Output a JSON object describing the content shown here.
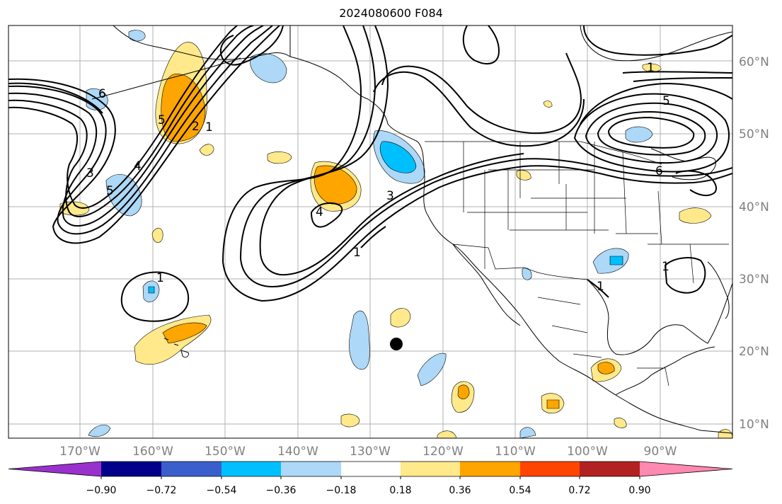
{
  "title": "2024080600 F084",
  "map": {
    "lat_labels": [
      "60°N",
      "50°N",
      "40°N",
      "30°N",
      "20°N",
      "10°N"
    ],
    "lon_labels": [
      "170°W",
      "160°W",
      "150°W",
      "140°W",
      "130°W",
      "120°W",
      "110°W",
      "100°W",
      "90°W"
    ],
    "contour_labels": [
      "6",
      "5",
      "2",
      "1",
      "3",
      "4",
      "5",
      "4",
      "3",
      "1",
      "1",
      "5",
      "6",
      "1",
      "1",
      "1"
    ],
    "marker": "black-dot"
  },
  "colorbar": {
    "ticks": [
      "−0.90",
      "−0.72",
      "−0.54",
      "−0.36",
      "−0.18",
      "0.18",
      "0.36",
      "0.54",
      "0.72",
      "0.90"
    ],
    "colors": [
      "#9932cc",
      "#00008b",
      "#3a5fcd",
      "#00bfff",
      "#add8f7",
      "#ffffff",
      "#ffe98a",
      "#ffa500",
      "#ff4500",
      "#b22222",
      "#ff89b0"
    ]
  }
}
